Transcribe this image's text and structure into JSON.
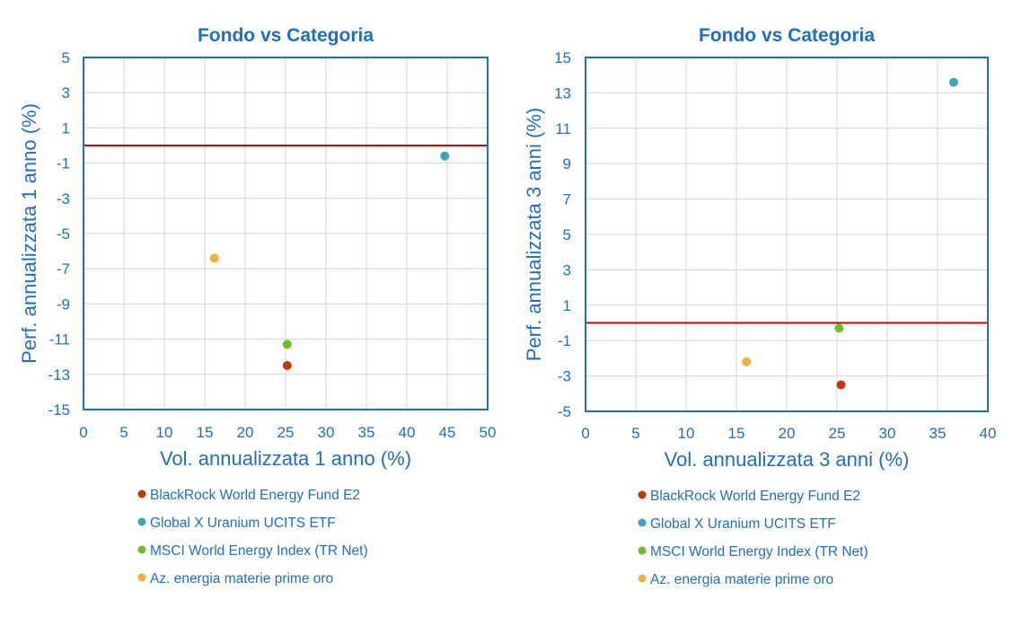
{
  "chart_data": [
    {
      "type": "scatter",
      "title": "Fondo vs Categoria",
      "xlabel": "Vol. annualizzata 1 anno (%)",
      "ylabel": "Perf. annualizzata 1 anno (%)",
      "xlim": [
        0,
        50
      ],
      "ylim": [
        -15,
        5
      ],
      "xticks": [
        0,
        5,
        10,
        15,
        20,
        25,
        30,
        35,
        40,
        45,
        50
      ],
      "yticks": [
        -15,
        -13,
        -11,
        -9,
        -7,
        -5,
        -3,
        -1,
        1,
        3,
        5
      ],
      "reference_line_y": 0,
      "grid": true,
      "series": [
        {
          "name": "BlackRock World Energy Fund E2",
          "color": "#c0390b",
          "x": 25.2,
          "y": -12.5
        },
        {
          "name": "Global X Uranium UCITS ETF",
          "color": "#3aa6b9",
          "x": 44.7,
          "y": -0.6
        },
        {
          "name": "MSCI World Energy Index (TR Net)",
          "color": "#6cc024",
          "x": 25.2,
          "y": -11.3
        },
        {
          "name": "Az. energia materie prime oro",
          "color": "#f0b040",
          "x": 16.2,
          "y": -6.4
        }
      ]
    },
    {
      "type": "scatter",
      "title": "Fondo vs Categoria",
      "xlabel": "Vol. annualizzata 3 anni (%)",
      "ylabel": "Perf. annualizzata 3 anni (%)",
      "xlim": [
        0,
        40
      ],
      "ylim": [
        -5,
        15
      ],
      "xticks": [
        0,
        5,
        10,
        15,
        20,
        25,
        30,
        35,
        40
      ],
      "yticks": [
        -5,
        -3,
        -1,
        1,
        3,
        5,
        7,
        9,
        11,
        13,
        15
      ],
      "reference_line_y": 0,
      "grid": true,
      "series": [
        {
          "name": "BlackRock World Energy Fund E2",
          "color": "#c0390b",
          "x": 25.4,
          "y": -3.5
        },
        {
          "name": "Global X Uranium UCITS ETF",
          "color": "#3aa6b9",
          "x": 36.6,
          "y": 13.6
        },
        {
          "name": "MSCI World Energy Index (TR Net)",
          "color": "#6cc024",
          "x": 25.2,
          "y": -0.3
        },
        {
          "name": "Az. energia materie prime oro",
          "color": "#f0b040",
          "x": 16.0,
          "y": -2.2
        }
      ]
    }
  ]
}
